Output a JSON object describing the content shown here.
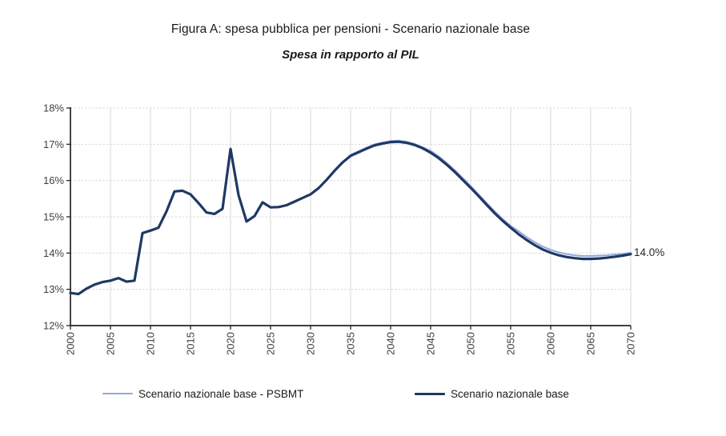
{
  "chart_data": {
    "type": "line",
    "title": "Figura A: spesa pubblica per pensioni - Scenario nazionale base",
    "subtitle": "Spesa in rapporto al PIL",
    "xlabel": "",
    "ylabel": "",
    "xlim": [
      2000,
      2070
    ],
    "ylim": [
      12,
      18
    ],
    "grid": true,
    "legend_position": "bottom",
    "x_ticks": [
      2000,
      2005,
      2010,
      2015,
      2020,
      2025,
      2030,
      2035,
      2040,
      2045,
      2050,
      2055,
      2060,
      2065,
      2070
    ],
    "y_tick_values": [
      12,
      13,
      14,
      15,
      16,
      17,
      18
    ],
    "y_tick_labels": [
      "12%",
      "13%",
      "14%",
      "15%",
      "16%",
      "17%",
      "18%"
    ],
    "annotation": {
      "text": "14.0%",
      "year": 2070,
      "value": 14.0
    },
    "x": [
      2000,
      2001,
      2002,
      2003,
      2004,
      2005,
      2006,
      2007,
      2008,
      2009,
      2010,
      2011,
      2012,
      2013,
      2014,
      2015,
      2016,
      2017,
      2018,
      2019,
      2020,
      2021,
      2022,
      2023,
      2024,
      2025,
      2026,
      2027,
      2028,
      2029,
      2030,
      2031,
      2032,
      2033,
      2034,
      2035,
      2036,
      2037,
      2038,
      2039,
      2040,
      2041,
      2042,
      2043,
      2044,
      2045,
      2046,
      2047,
      2048,
      2049,
      2050,
      2051,
      2052,
      2053,
      2054,
      2055,
      2056,
      2057,
      2058,
      2059,
      2060,
      2061,
      2062,
      2063,
      2064,
      2065,
      2066,
      2067,
      2068,
      2069,
      2070
    ],
    "series": [
      {
        "name": "Scenario nazionale base - PSBMT",
        "color": "#8EAADB",
        "width": 2,
        "values": [
          12.9,
          12.87,
          13.02,
          13.13,
          13.2,
          13.24,
          13.31,
          13.21,
          13.24,
          14.55,
          14.62,
          14.7,
          15.15,
          15.7,
          15.72,
          15.62,
          15.38,
          15.12,
          15.08,
          15.22,
          16.87,
          15.6,
          14.87,
          15.02,
          15.4,
          15.26,
          15.27,
          15.32,
          15.42,
          15.52,
          15.62,
          15.79,
          16.02,
          16.27,
          16.5,
          16.71,
          16.81,
          16.91,
          17.0,
          17.05,
          17.09,
          17.1,
          17.07,
          17.01,
          16.92,
          16.82,
          16.67,
          16.49,
          16.29,
          16.07,
          15.85,
          15.62,
          15.38,
          15.15,
          14.94,
          14.75,
          14.6,
          14.44,
          14.3,
          14.18,
          14.09,
          14.02,
          13.97,
          13.94,
          13.92,
          13.92,
          13.93,
          13.94,
          13.96,
          13.98,
          14.01
        ]
      },
      {
        "name": "Scenario nazionale base",
        "color": "#1F3864",
        "width": 3.2,
        "values": [
          12.9,
          12.87,
          13.02,
          13.13,
          13.2,
          13.24,
          13.31,
          13.21,
          13.24,
          14.55,
          14.62,
          14.7,
          15.15,
          15.7,
          15.72,
          15.62,
          15.38,
          15.12,
          15.08,
          15.22,
          16.87,
          15.6,
          14.87,
          15.02,
          15.4,
          15.26,
          15.27,
          15.32,
          15.42,
          15.52,
          15.62,
          15.79,
          16.02,
          16.27,
          16.5,
          16.68,
          16.78,
          16.88,
          16.97,
          17.02,
          17.06,
          17.07,
          17.04,
          16.98,
          16.89,
          16.77,
          16.62,
          16.44,
          16.24,
          16.02,
          15.8,
          15.57,
          15.33,
          15.1,
          14.89,
          14.7,
          14.52,
          14.36,
          14.22,
          14.1,
          14.01,
          13.94,
          13.89,
          13.86,
          13.84,
          13.84,
          13.85,
          13.87,
          13.9,
          13.93,
          13.97
        ]
      }
    ]
  }
}
